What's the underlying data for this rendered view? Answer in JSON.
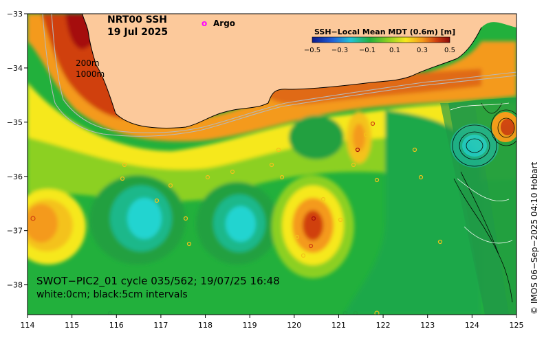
{
  "title": {
    "product": "NRT00 SSH",
    "date": "19 Jul 2025"
  },
  "legend": {
    "argo_symbol": "o",
    "argo_label": "Argo",
    "argo_color": "#ff00ff"
  },
  "colorbar": {
    "title": "SSH−Local Mean MDT (0.6m) [m]",
    "tick_labels": [
      "−0.5",
      "−0.3",
      "−0.1",
      "0.1",
      "0.3",
      "0.5"
    ],
    "range": [
      -0.5,
      0.5
    ]
  },
  "depth_labels": [
    "200m",
    "1000m"
  ],
  "pass_info": "SWOT−PIC2_01 cycle 035/562; 19/07/25 16:48",
  "contour_info": "white:0cm; black:5cm intervals",
  "credit": "© IMOS 06−Sep−2025 04:10 Hobart",
  "axes": {
    "lon_ticks": [
      "114",
      "115",
      "116",
      "117",
      "118",
      "119",
      "120",
      "121",
      "122",
      "123",
      "124",
      "125"
    ],
    "lat_ticks": [
      "−33",
      "−34",
      "−35",
      "−36",
      "−37",
      "−38"
    ],
    "xlim": [
      114,
      125
    ],
    "ylim": [
      -38.55,
      -33
    ]
  },
  "colors": {
    "land": "#fcc99b",
    "ocean_mid": "#22b03c",
    "high": "#a50c0c",
    "low": "#22d4d0"
  }
}
